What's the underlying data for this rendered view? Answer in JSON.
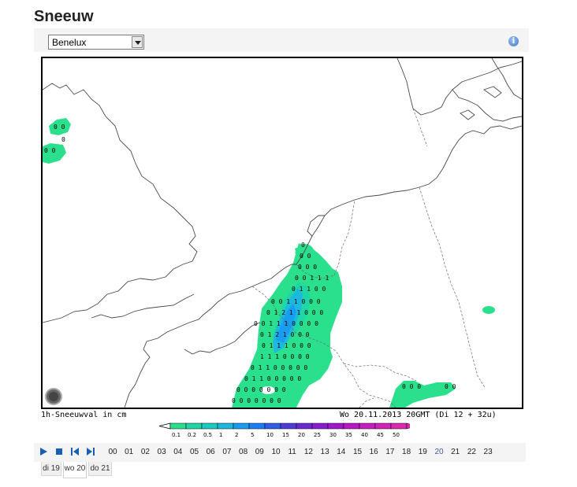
{
  "page": {
    "title": "Sneeuw"
  },
  "region_select": {
    "value": "Benelux"
  },
  "map": {
    "caption_left": "1h-Sneeuwval in cm",
    "caption_right": "Wo 20.11.2013 20GMT (Di 12 + 32u)"
  },
  "legend": {
    "labels": [
      "0.1",
      "0.2",
      "0.5",
      "1",
      "2",
      "5",
      "10",
      "15",
      "20",
      "25",
      "30",
      "35",
      "40",
      "45",
      "50"
    ],
    "colors": [
      "#2be08c",
      "#1fd6a6",
      "#1acbc0",
      "#1cb8de",
      "#189ef0",
      "#1a7ff4",
      "#2f5de8",
      "#4f3ed6",
      "#6a2ad0",
      "#8a1cd0",
      "#a216cc",
      "#b818c6",
      "#c81cc0",
      "#d222b8",
      "#dc2ab0"
    ]
  },
  "timeline": {
    "hours": [
      "00",
      "01",
      "02",
      "03",
      "04",
      "05",
      "06",
      "07",
      "08",
      "09",
      "10",
      "11",
      "12",
      "13",
      "14",
      "15",
      "16",
      "17",
      "18",
      "19",
      "20",
      "21",
      "22",
      "23"
    ],
    "active_hour": "20",
    "days": [
      "di 19",
      "wo 20",
      "do 21"
    ],
    "active_day": "wo 20"
  },
  "colors": {
    "snow_light": "#2be08c",
    "snow_medium": "#1cb8de",
    "snow_heavy": "#189ef0",
    "coast": "#4a4a4a",
    "active": "#4b57a8"
  }
}
